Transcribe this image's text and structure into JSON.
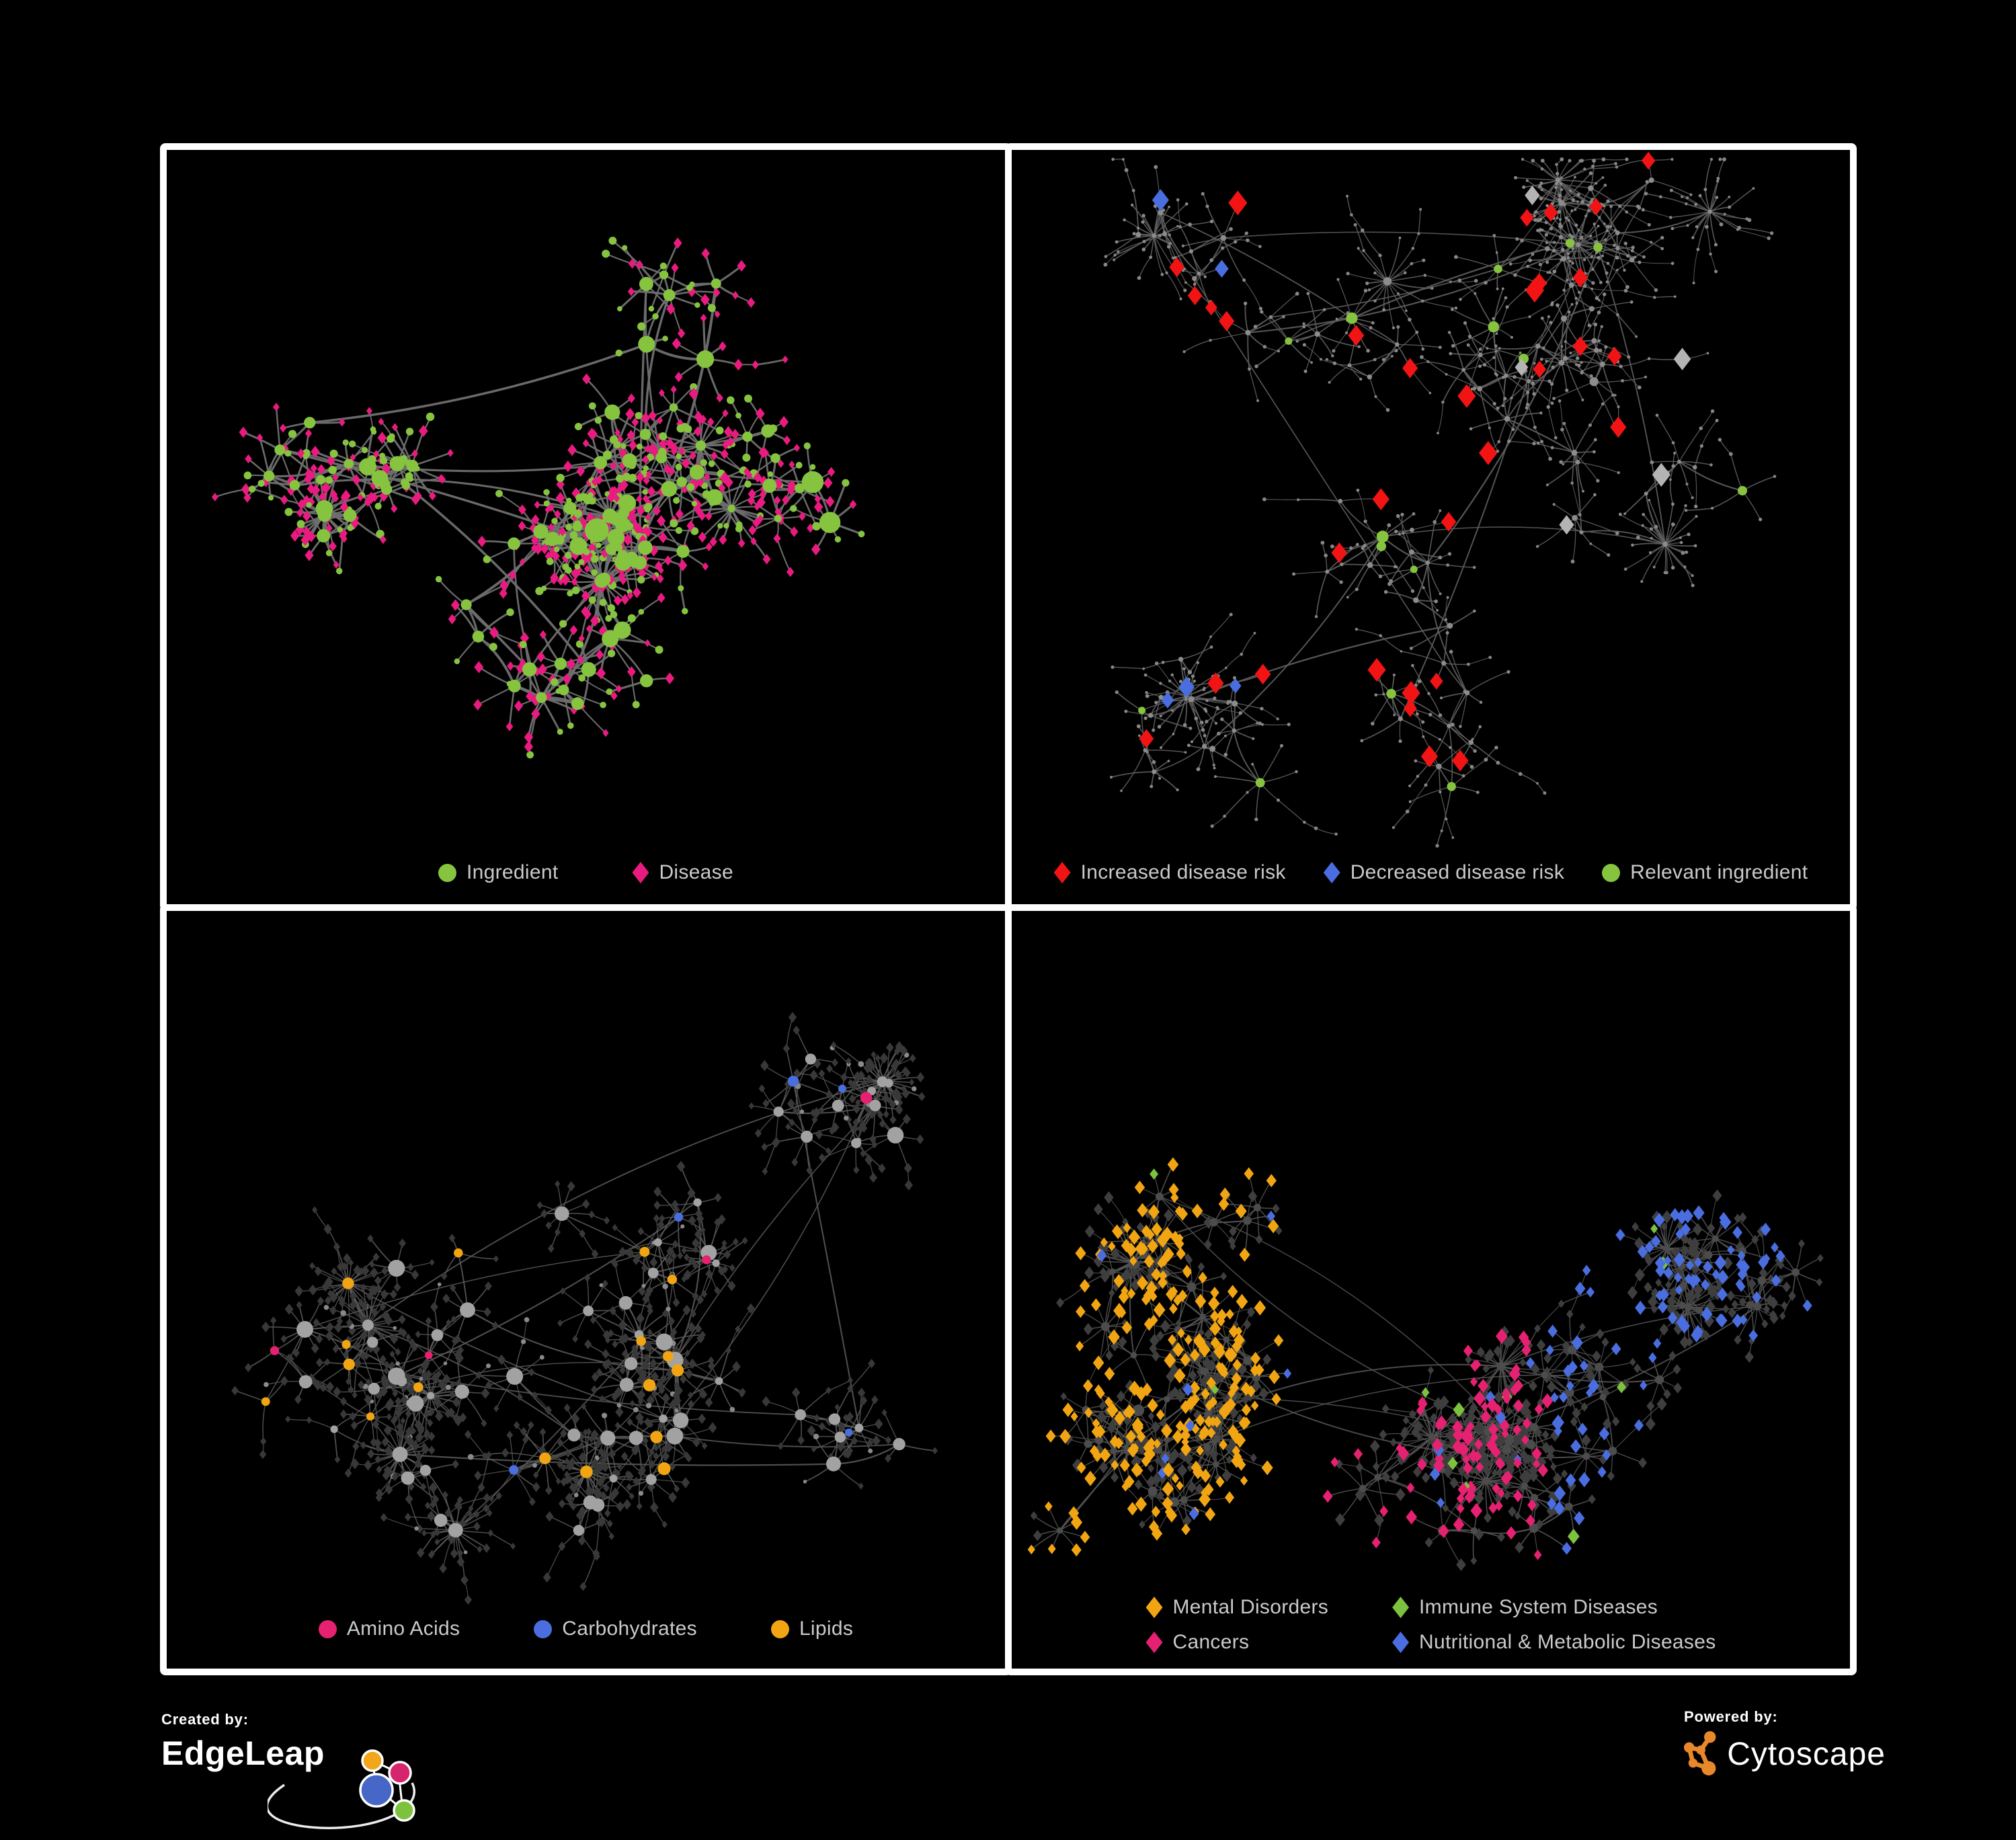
{
  "page": {
    "background": "#000000",
    "panel_border_color": "#ffffff",
    "legend_text_color": "#cacaca"
  },
  "attribution": {
    "created_by_label": "Created by:",
    "created_by_name": "EdgeLeap",
    "powered_by_label": "Powered by:",
    "powered_by_name": "Cytoscape",
    "edgeleap_logo_colors": {
      "orange": "#F2A71B",
      "pink": "#D6246E",
      "blue": "#4666C8",
      "green": "#7CC23F",
      "stroke": "#ffffff"
    },
    "cytoscape_logo_color": "#E8882B"
  },
  "panels": [
    {
      "id": "ingredients-diseases-network",
      "legend": {
        "rows": 1,
        "items": [
          {
            "shape": "circle",
            "color": "#86C440",
            "label": "Ingredient"
          },
          {
            "shape": "diamond",
            "color": "#EA1B80",
            "label": "Disease"
          }
        ]
      },
      "net": {
        "seed": 11,
        "clusters": 8,
        "hubs": 85,
        "leafMin": 2,
        "leafMax": 8,
        "starProb": 0.07,
        "starLeaves": 15,
        "chainProb": 0.2,
        "extraEdges": 14,
        "spread": 120,
        "leafDist": [
          26,
          64
        ],
        "margin": [
          85,
          55,
          85,
          185
        ],
        "edge": {
          "color": "#6F6F6F",
          "width": 2.6,
          "opacity": 0.95
        },
        "hub": {
          "shape": "circle",
          "color": "#86C440",
          "rMin": 5.5,
          "rMax": 13
        },
        "leaf": {
          "shape": "diamond",
          "color": "#EA1B80",
          "size": 5.5
        },
        "leafAlt": {
          "shape": "circle",
          "color": "#86C440",
          "r": 5,
          "prob": 0.32
        },
        "overrides": []
      }
    },
    {
      "id": "disease-risk-network",
      "legend": {
        "rows": 1,
        "items": [
          {
            "shape": "diamond",
            "color": "#F21414",
            "label": "Increased disease risk"
          },
          {
            "shape": "diamond",
            "color": "#4A6EDF",
            "label": "Decreased disease risk"
          },
          {
            "shape": "circle",
            "color": "#86C440",
            "label": "Relevant ingredient"
          }
        ]
      },
      "net": {
        "seed": 23,
        "clusters": 10,
        "hubs": 95,
        "leafMin": 2,
        "leafMax": 7,
        "starProb": 0.08,
        "starLeaves": 18,
        "chainProb": 0.3,
        "extraEdges": 10,
        "spread": 130,
        "leafDist": [
          22,
          70
        ],
        "margin": [
          65,
          45,
          65,
          175
        ],
        "edge": {
          "color": "#5E5E5E",
          "width": 1.5,
          "opacity": 0.9
        },
        "hub": {
          "shape": "circle",
          "color": "#8C8C8C",
          "rMin": 2.8,
          "rMax": 4.5
        },
        "leaf": {
          "shape": "circle",
          "color": "#878787",
          "size": 2.3,
          "r": 2.3
        },
        "overrides": [
          {
            "target": "leaf",
            "zone": "center",
            "prob": 0.05,
            "shape": "diamond",
            "color": "#F21414",
            "size": 12,
            "top": true
          },
          {
            "target": "leaf",
            "zone": "right",
            "prob": 0.02,
            "shape": "diamond",
            "color": "#F21414",
            "size": 11,
            "top": true
          },
          {
            "target": "leaf",
            "zone": "left",
            "prob": 0.035,
            "shape": "diamond",
            "color": "#4A6EDF",
            "size": 11,
            "top": true
          },
          {
            "target": "leaf",
            "zone": "left",
            "prob": 0.03,
            "shape": "diamond",
            "color": "#F21414",
            "size": 11,
            "top": true
          },
          {
            "target": "leaf",
            "zone": "any",
            "prob": 0.014,
            "shape": "diamond",
            "color": "#B4B4B4",
            "size": 11,
            "top": true
          },
          {
            "target": "hub",
            "zone": "center",
            "prob": 0.3,
            "shape": "circle",
            "color": "#86C440",
            "r": 7,
            "top": true
          },
          {
            "target": "hub",
            "zone": "left",
            "prob": 0.15,
            "shape": "circle",
            "color": "#86C440",
            "r": 6,
            "top": true
          },
          {
            "target": "hub",
            "zone": "right",
            "prob": 0.08,
            "shape": "circle",
            "color": "#86C440",
            "r": 6,
            "top": true
          }
        ]
      }
    },
    {
      "id": "compound-classes-network",
      "legend": {
        "rows": 1,
        "items": [
          {
            "shape": "circle",
            "color": "#E62171",
            "label": "Amino Acids"
          },
          {
            "shape": "circle",
            "color": "#4A6EDF",
            "label": "Carbohydrates"
          },
          {
            "shape": "circle",
            "color": "#F2A512",
            "label": "Lipids"
          }
        ]
      },
      "net": {
        "seed": 37,
        "clusters": 9,
        "hubs": 90,
        "leafMin": 3,
        "leafMax": 10,
        "starProb": 0.1,
        "starLeaves": 22,
        "chainProb": 0.12,
        "extraEdges": 12,
        "spread": 115,
        "leafDist": [
          24,
          60
        ],
        "margin": [
          75,
          45,
          75,
          195
        ],
        "edge": {
          "color": "#5A5A5A",
          "width": 1.5,
          "opacity": 0.85
        },
        "hub": {
          "shape": "circle",
          "color": "#A2A2A2",
          "rMin": 5.5,
          "rMax": 13
        },
        "leaf": {
          "shape": "diamond",
          "color": "#383838",
          "size": 5
        },
        "leafAlt": {
          "shape": "circle",
          "color": "#8A8A8A",
          "r": 3.5,
          "prob": 0.07
        },
        "overrides": [
          {
            "target": "hub",
            "zone": "center",
            "prob": 0.27,
            "shape": "circle",
            "color": "#F2A512",
            "r": 8,
            "top": true
          },
          {
            "target": "hub",
            "zone": "left",
            "prob": 0.12,
            "shape": "circle",
            "color": "#F2A512",
            "r": 7,
            "top": true
          },
          {
            "target": "hub",
            "zone": "any",
            "prob": 0.05,
            "shape": "circle",
            "color": "#4A6EDF",
            "r": 7,
            "top": true
          },
          {
            "target": "hub",
            "zone": "right",
            "prob": 0.09,
            "shape": "circle",
            "color": "#E62171",
            "r": 8,
            "top": true
          },
          {
            "target": "hub",
            "zone": "left",
            "prob": 0.07,
            "shape": "circle",
            "color": "#E62171",
            "r": 7,
            "top": true
          }
        ]
      }
    },
    {
      "id": "disease-categories-network",
      "legend": {
        "rows": 2,
        "items": [
          {
            "shape": "diamond",
            "color": "#F2A512",
            "label": "Mental Disorders"
          },
          {
            "shape": "diamond",
            "color": "#7CC23F",
            "label": "Immune System Diseases"
          },
          {
            "shape": "diamond",
            "color": "#E62171",
            "label": "Cancers"
          },
          {
            "shape": "diamond",
            "color": "#4A6EDF",
            "label": "Nutritional & Metabolic Diseases"
          }
        ]
      },
      "net": {
        "seed": 53,
        "clusters": 9,
        "hubs": 95,
        "leafMin": 4,
        "leafMax": 11,
        "starProb": 0.12,
        "starLeaves": 24,
        "chainProb": 0.1,
        "extraEdges": 12,
        "spread": 115,
        "leafDist": [
          22,
          58
        ],
        "margin": [
          65,
          45,
          65,
          205
        ],
        "edge": {
          "color": "#565656",
          "width": 1.4,
          "opacity": 0.85
        },
        "hub": {
          "shape": "circle",
          "color": "#4C4C4C",
          "rMin": 4.5,
          "rMax": 7
        },
        "leaf": {
          "shape": "diamond",
          "color": "#3E3E3E",
          "size": 6
        },
        "overrides": [
          {
            "target": "leaf",
            "zone": "left",
            "prob": 0.5,
            "shape": "diamond",
            "color": "#F2A512",
            "size": 7,
            "top": true
          },
          {
            "target": "leaf",
            "zone": "center",
            "prob": 0.3,
            "shape": "diamond",
            "color": "#E62171",
            "size": 7,
            "top": true
          },
          {
            "target": "leaf",
            "zone": "right",
            "prob": 0.38,
            "shape": "diamond",
            "color": "#4A6EDF",
            "size": 7,
            "top": true
          },
          {
            "target": "leaf",
            "zone": "any",
            "prob": 0.02,
            "shape": "diamond",
            "color": "#7CC23F",
            "size": 7,
            "top": true
          },
          {
            "target": "leaf",
            "zone": "left",
            "prob": 0.04,
            "shape": "diamond",
            "color": "#4A6EDF",
            "size": 6.5,
            "top": true
          },
          {
            "target": "leaf",
            "zone": "center",
            "prob": 0.05,
            "shape": "diamond",
            "color": "#4A6EDF",
            "size": 6.5,
            "top": true
          }
        ]
      }
    }
  ]
}
